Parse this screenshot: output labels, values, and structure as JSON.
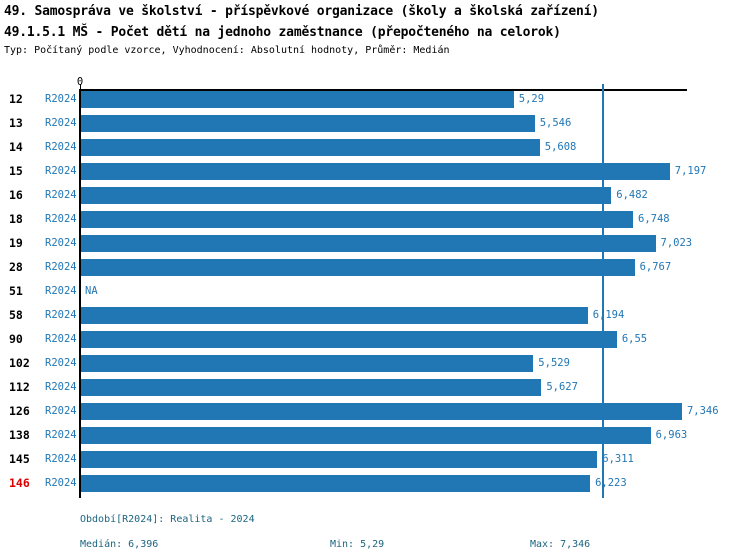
{
  "title_line1": "49. Samospráva ve školství - příspěvkové organizace (školy a školská zařízení)",
  "title_line2": "49.1.5.1 MŠ - Počet dětí na jednoho zaměstnance (přepočteného na celorok)",
  "meta_line": "Typ: Počítaný podle vzorce, Vyhodnocení: Absolutní hodnoty, Průměr: Medián",
  "chart_data": {
    "type": "bar",
    "orientation": "horizontal",
    "series_label": "R2024",
    "categories": [
      "12",
      "13",
      "14",
      "15",
      "16",
      "18",
      "19",
      "28",
      "51",
      "58",
      "90",
      "102",
      "112",
      "126",
      "138",
      "145",
      "146"
    ],
    "values": [
      5.29,
      5.546,
      5.608,
      7.197,
      6.482,
      6.748,
      7.023,
      6.767,
      null,
      6.194,
      6.55,
      5.529,
      5.627,
      7.346,
      6.963,
      6.311,
      6.223
    ],
    "value_labels": [
      "5,29",
      "5,546",
      "5,608",
      "7,197",
      "6,482",
      "6,748",
      "7,023",
      "6,767",
      "NA",
      "6,194",
      "6,55",
      "5,529",
      "5,627",
      "7,346",
      "6,963",
      "6,311",
      "6,223"
    ],
    "na_label": "NA",
    "axis_zero_label": "0",
    "xlim": [
      0,
      7.42
    ],
    "median_line": 6.396,
    "highlighted_category": "146",
    "grid": false,
    "legend": false
  },
  "footer": {
    "period": "Období[R2024]: Realita - 2024",
    "median": "Medián: 6,396",
    "min": "Min: 5,29",
    "max": "Max: 7,346"
  },
  "colors": {
    "bar": "#2176b4",
    "accent_text": "#2176b4",
    "median_line": "#2176b4",
    "highlight_label": "#dd0000",
    "footer_text": "#1b6580",
    "axis": "#000000"
  }
}
